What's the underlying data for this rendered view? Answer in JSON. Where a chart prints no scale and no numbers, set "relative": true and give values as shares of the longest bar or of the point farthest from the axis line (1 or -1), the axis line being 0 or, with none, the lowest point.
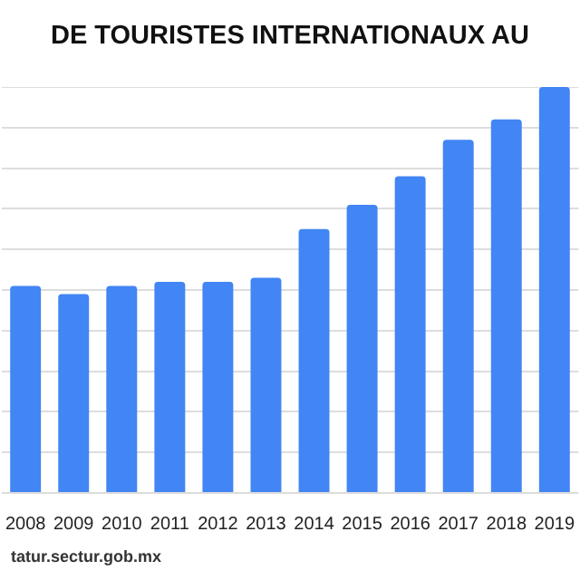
{
  "chart_data": {
    "type": "bar",
    "title": "DE TOURISTES INTERNATIONAUX AU",
    "categories": [
      "2008",
      "2009",
      "2010",
      "2011",
      "2012",
      "2013",
      "2014",
      "2015",
      "2016",
      "2017",
      "2018",
      "2019"
    ],
    "values": [
      0.51,
      0.49,
      0.51,
      0.52,
      0.52,
      0.53,
      0.65,
      0.71,
      0.78,
      0.87,
      0.92,
      1
    ],
    "color": "#4285f4",
    "relative": true,
    "grid": "y",
    "legend": false,
    "annotations": [
      "tatur.sectur.gob.mx"
    ]
  }
}
